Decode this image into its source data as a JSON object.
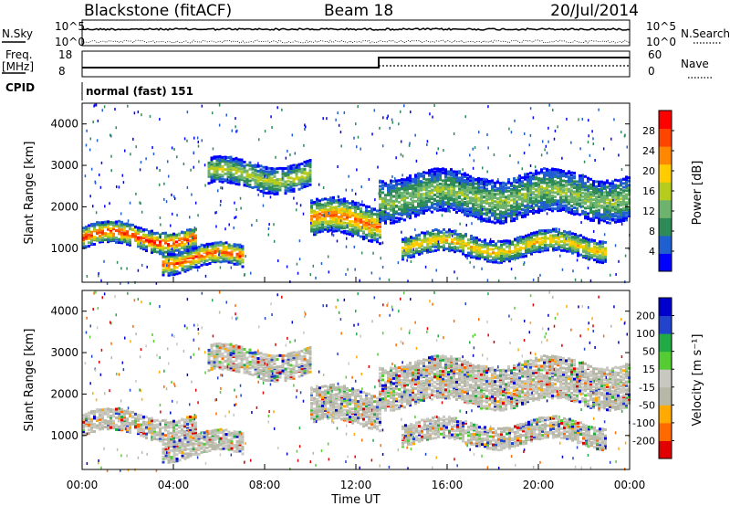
{
  "header": {
    "station": "Blackstone (fitACF)",
    "beam": "Beam 18",
    "date": "20/Jul/2014"
  },
  "noise_panel": {
    "left_label": "N.Sky",
    "right_label": "N.Search",
    "left_ticks": [
      "10^5",
      "10^0"
    ],
    "right_ticks": [
      "10^5",
      "10^0"
    ]
  },
  "freq_panel": {
    "left_label_1": "Freq.",
    "left_label_2": "[MHz]",
    "right_label": "Nave",
    "left_ticks": [
      "18",
      "8"
    ],
    "right_ticks": [
      "60",
      "0"
    ]
  },
  "cpid": {
    "label": "CPID",
    "text": "normal (fast) 151"
  },
  "colors": {
    "power_scale": [
      "#0000ff",
      "#1f5fcf",
      "#2e8b57",
      "#6db26d",
      "#b5cc1f",
      "#ffcc00",
      "#ff8800",
      "#ff4400",
      "#ff0000"
    ],
    "velocity_scale": [
      "#e00000",
      "#ff6a00",
      "#ffaa00",
      "#b8b8a8",
      "#c8c8c0",
      "#55cc33",
      "#22aa44",
      "#2244cc",
      "#0000cc"
    ],
    "frame": "#000000"
  },
  "chart_data": [
    {
      "type": "heatmap",
      "name": "power",
      "xlabel": "",
      "ylabel": "Slant Range [km]",
      "ylim": [
        180,
        4500
      ],
      "xlim_hours": [
        0,
        24
      ],
      "y_ticks": [
        "1000",
        "2000",
        "3000",
        "4000"
      ],
      "colorbar": {
        "label": "Power [dB]",
        "ticks": [
          "4",
          "8",
          "12",
          "16",
          "20",
          "24",
          "28"
        ],
        "range": [
          0,
          30
        ]
      },
      "echo_bands": [
        {
          "start_hour": 0.0,
          "end_hour": 5.0,
          "center_km": 1300,
          "width_km": 250,
          "peak_db": 26
        },
        {
          "start_hour": 3.5,
          "end_hour": 7.0,
          "center_km": 800,
          "width_km": 250,
          "peak_db": 24
        },
        {
          "start_hour": 5.5,
          "end_hour": 10.0,
          "center_km": 2800,
          "width_km": 300,
          "peak_db": 14
        },
        {
          "start_hour": 10.0,
          "end_hour": 13.0,
          "center_km": 1700,
          "width_km": 400,
          "peak_db": 22
        },
        {
          "start_hour": 13.0,
          "end_hour": 24.0,
          "center_km": 2300,
          "width_km": 500,
          "peak_db": 12
        },
        {
          "start_hour": 14.0,
          "end_hour": 23.0,
          "center_km": 1100,
          "width_km": 250,
          "peak_db": 18
        }
      ]
    },
    {
      "type": "heatmap",
      "name": "velocity",
      "xlabel": "Time UT",
      "ylabel": "Slant Range [km]",
      "ylim": [
        180,
        4500
      ],
      "xlim_hours": [
        0,
        24
      ],
      "x_ticks": [
        "00:00",
        "04:00",
        "08:00",
        "12:00",
        "16:00",
        "20:00",
        "00:00"
      ],
      "y_ticks": [
        "1000",
        "2000",
        "3000",
        "4000"
      ],
      "colorbar": {
        "label": "Velocity [m s⁻¹]",
        "ticks": [
          "200",
          "100",
          "50",
          "15",
          "-15",
          "-50",
          "-100",
          "-200"
        ],
        "range": [
          -250,
          250
        ]
      }
    }
  ]
}
